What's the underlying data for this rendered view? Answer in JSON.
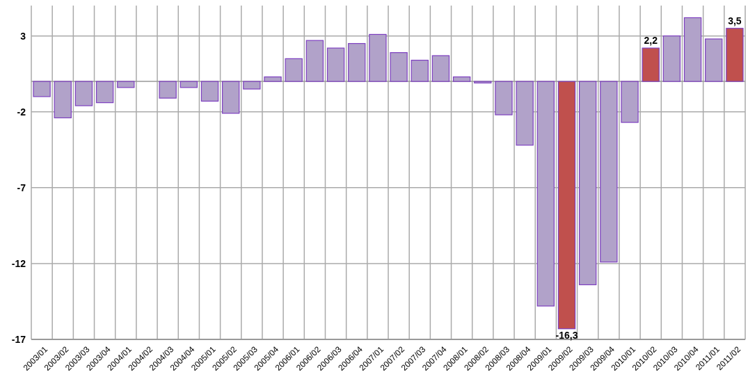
{
  "chart_data": {
    "type": "bar",
    "categories": [
      "2003/01",
      "2003/02",
      "2003/03",
      "2003/04",
      "2004/01",
      "2004/02",
      "2004/03",
      "2004/04",
      "2005/01",
      "2005/02",
      "2005/03",
      "2005/04",
      "2006/01",
      "2006/02",
      "2006/03",
      "2006/04",
      "2007/01",
      "2007/02",
      "2007/03",
      "2007/04",
      "2008/01",
      "2008/02",
      "2008/03",
      "2008/04",
      "2009/01",
      "2009/02",
      "2009/03",
      "2009/04",
      "2010/01",
      "2010/02",
      "2010/03",
      "2010/04",
      "2011/01",
      "2011/02"
    ],
    "values": [
      -1.0,
      -2.4,
      -1.6,
      -1.4,
      -0.4,
      0,
      -1.1,
      -0.4,
      -1.3,
      -2.1,
      -0.5,
      0.3,
      1.5,
      2.7,
      2.2,
      2.5,
      3.1,
      1.9,
      1.4,
      1.7,
      0.3,
      -0.1,
      -2.2,
      -4.2,
      -14.8,
      -16.3,
      -13.4,
      -11.9,
      -2.7,
      2.2,
      3.0,
      4.2,
      2.8,
      3.5
    ],
    "colors": [
      "#b1a2c9",
      "#b1a2c9",
      "#b1a2c9",
      "#b1a2c9",
      "#b1a2c9",
      "#b1a2c9",
      "#b1a2c9",
      "#b1a2c9",
      "#b1a2c9",
      "#b1a2c9",
      "#b1a2c9",
      "#b1a2c9",
      "#b1a2c9",
      "#b1a2c9",
      "#b1a2c9",
      "#b1a2c9",
      "#b1a2c9",
      "#b1a2c9",
      "#b1a2c9",
      "#b1a2c9",
      "#b1a2c9",
      "#b1a2c9",
      "#b1a2c9",
      "#b1a2c9",
      "#b1a2c9",
      "#c0504d",
      "#b1a2c9",
      "#b1a2c9",
      "#b1a2c9",
      "#c0504d",
      "#b1a2c9",
      "#b1a2c9",
      "#b1a2c9",
      "#c0504d"
    ],
    "value_labels": [
      null,
      null,
      null,
      null,
      null,
      null,
      null,
      null,
      null,
      null,
      null,
      null,
      null,
      null,
      null,
      null,
      null,
      null,
      null,
      null,
      null,
      null,
      null,
      null,
      null,
      "-16,3",
      null,
      null,
      null,
      "2,2",
      null,
      null,
      null,
      "3,5"
    ],
    "ylim": [
      -17,
      5
    ],
    "yticks": [
      -17,
      -12,
      -7,
      -2,
      3
    ],
    "grid": true
  }
}
